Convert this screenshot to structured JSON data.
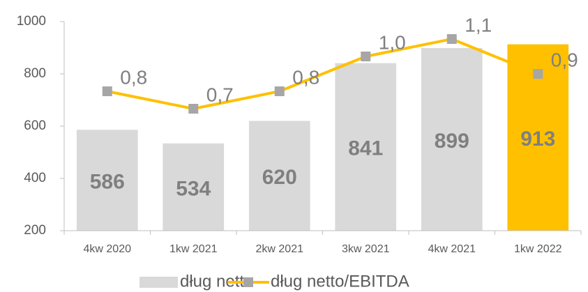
{
  "chart_data": {
    "type": "bar",
    "categories": [
      "4kw 2020",
      "1kw 2021",
      "2kw 2021",
      "3kw 2021",
      "4kw 2021",
      "1kw 2022"
    ],
    "ylim": [
      200,
      1000
    ],
    "yticks": [
      200,
      400,
      600,
      800,
      1000
    ],
    "y2lim": [
      0,
      1.2
    ],
    "grid": false,
    "series": [
      {
        "name": "dług netto",
        "type": "bar",
        "color": "#d9d9d9",
        "colors": [
          "#d9d9d9",
          "#d9d9d9",
          "#d9d9d9",
          "#d9d9d9",
          "#d9d9d9",
          "#ffc000"
        ],
        "values": [
          586,
          534,
          620,
          841,
          899,
          913
        ]
      },
      {
        "name": "dług netto/EBITDA",
        "type": "line",
        "axis": "y2",
        "color": "#ffc000",
        "marker_color": "#a6a6a6",
        "values": [
          0.8,
          0.7,
          0.8,
          1.0,
          1.1,
          0.9
        ],
        "value_labels": [
          "0,8",
          "0,7",
          "0,8",
          "1,0",
          "1,1",
          "0,9"
        ]
      }
    ]
  }
}
